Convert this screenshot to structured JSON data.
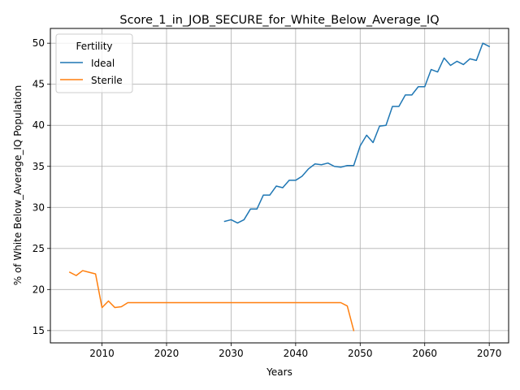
{
  "chart_data": {
    "type": "line",
    "title": "Score_1_in_JOB_SECURE_for_White_Below_Average_IQ",
    "xlabel": "Years",
    "ylabel": "% of White Below_Average_IQ Population",
    "xlim": [
      2002,
      2073
    ],
    "ylim": [
      13.5,
      51.8
    ],
    "xticks": [
      2010,
      2020,
      2030,
      2040,
      2050,
      2060,
      2070
    ],
    "yticks": [
      15,
      20,
      25,
      30,
      35,
      40,
      45,
      50
    ],
    "grid": true,
    "legend": {
      "title": "Fertility",
      "placement": "upper-left"
    },
    "series": [
      {
        "name": "Ideal",
        "color": "#1f77b4",
        "x": [
          2029,
          2030,
          2031,
          2032,
          2033,
          2034,
          2035,
          2036,
          2037,
          2038,
          2039,
          2040,
          2041,
          2042,
          2043,
          2044,
          2045,
          2046,
          2047,
          2048,
          2049,
          2050,
          2051,
          2052,
          2053,
          2054,
          2055,
          2056,
          2057,
          2058,
          2059,
          2060,
          2061,
          2062,
          2063,
          2064,
          2065,
          2066,
          2067,
          2068,
          2069,
          2070
        ],
        "values": [
          28.3,
          28.5,
          28.1,
          28.5,
          29.8,
          29.8,
          31.5,
          31.5,
          32.6,
          32.4,
          33.3,
          33.3,
          33.8,
          34.7,
          35.3,
          35.2,
          35.4,
          35.0,
          34.9,
          35.1,
          35.1,
          37.5,
          38.8,
          37.9,
          39.9,
          40.0,
          42.3,
          42.3,
          43.7,
          43.7,
          44.7,
          44.7,
          46.8,
          46.5,
          48.2,
          47.3,
          47.8,
          47.4,
          48.1,
          47.9,
          50.0,
          49.6
        ]
      },
      {
        "name": "Sterile",
        "color": "#ff7f0e",
        "x": [
          2005,
          2006,
          2007,
          2008,
          2009,
          2010,
          2011,
          2012,
          2013,
          2014,
          2015,
          2016,
          2017,
          2018,
          2019,
          2020,
          2021,
          2022,
          2023,
          2024,
          2025,
          2026,
          2027,
          2028,
          2029,
          2030,
          2031,
          2032,
          2033,
          2034,
          2035,
          2036,
          2037,
          2038,
          2039,
          2040,
          2041,
          2042,
          2043,
          2044,
          2045,
          2046,
          2047,
          2048,
          2049
        ],
        "values": [
          22.1,
          21.7,
          22.3,
          22.1,
          21.9,
          17.8,
          18.6,
          17.8,
          17.9,
          18.4,
          18.4,
          18.4,
          18.4,
          18.4,
          18.4,
          18.4,
          18.4,
          18.4,
          18.4,
          18.4,
          18.4,
          18.4,
          18.4,
          18.4,
          18.4,
          18.4,
          18.4,
          18.4,
          18.4,
          18.4,
          18.4,
          18.4,
          18.4,
          18.4,
          18.4,
          18.4,
          18.4,
          18.4,
          18.4,
          18.4,
          18.4,
          18.4,
          18.4,
          18.0,
          15.0
        ]
      }
    ]
  }
}
